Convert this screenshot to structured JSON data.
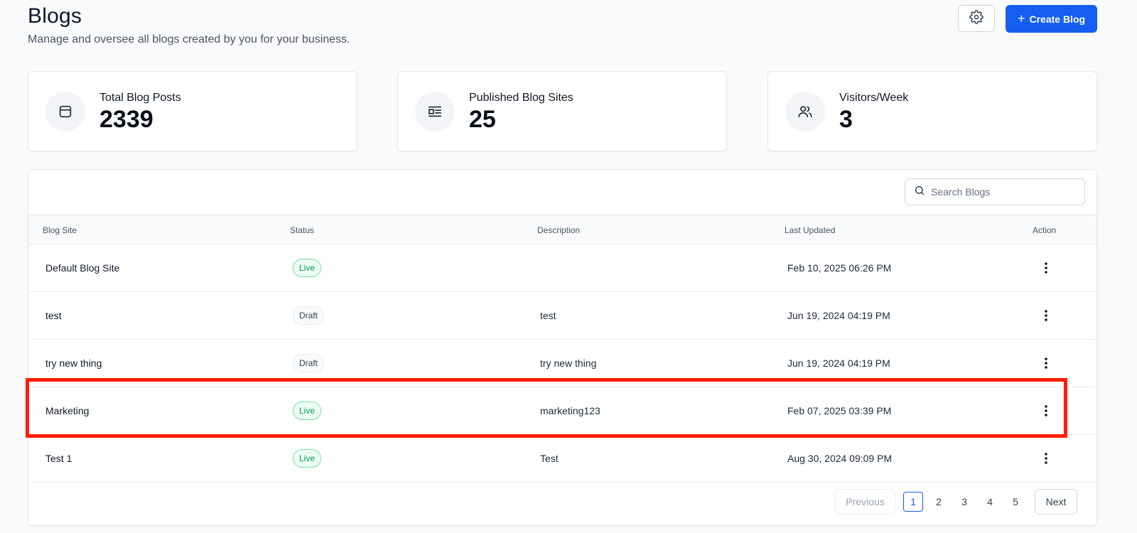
{
  "header": {
    "title": "Blogs",
    "subtitle": "Manage and oversee all blogs created by you for your business.",
    "create_label": "Create Blog"
  },
  "colors": {
    "primary": "#155eef",
    "live_text": "#079455",
    "live_bg": "#ecfdf3",
    "highlight": "#ff1e00"
  },
  "stats": [
    {
      "label": "Total Blog Posts",
      "value": "2339",
      "icon": "browser-window-icon"
    },
    {
      "label": "Published Blog Sites",
      "value": "25",
      "icon": "article-layout-icon"
    },
    {
      "label": "Visitors/Week",
      "value": "3",
      "icon": "users-icon"
    }
  ],
  "search": {
    "placeholder": "Search Blogs"
  },
  "table": {
    "columns": [
      "Blog Site",
      "Status",
      "Description",
      "Last Updated",
      "Action"
    ],
    "rows": [
      {
        "site": "Default Blog Site",
        "status": "Live",
        "description": "",
        "updated": "Feb 10, 2025 06:26 PM"
      },
      {
        "site": "test",
        "status": "Draft",
        "description": "test",
        "updated": "Jun 19, 2024 04:19 PM"
      },
      {
        "site": "try new thing",
        "status": "Draft",
        "description": "try new thing",
        "updated": "Jun 19, 2024 04:19 PM"
      },
      {
        "site": "Marketing",
        "status": "Live",
        "description": "marketing123",
        "updated": "Feb 07, 2025 03:39 PM"
      },
      {
        "site": "Test 1",
        "status": "Live",
        "description": "Test",
        "updated": "Aug 30, 2024 09:09 PM"
      }
    ]
  },
  "pagination": {
    "previous": "Previous",
    "next": "Next",
    "pages": [
      "1",
      "2",
      "3",
      "4",
      "5"
    ],
    "current": "1"
  }
}
